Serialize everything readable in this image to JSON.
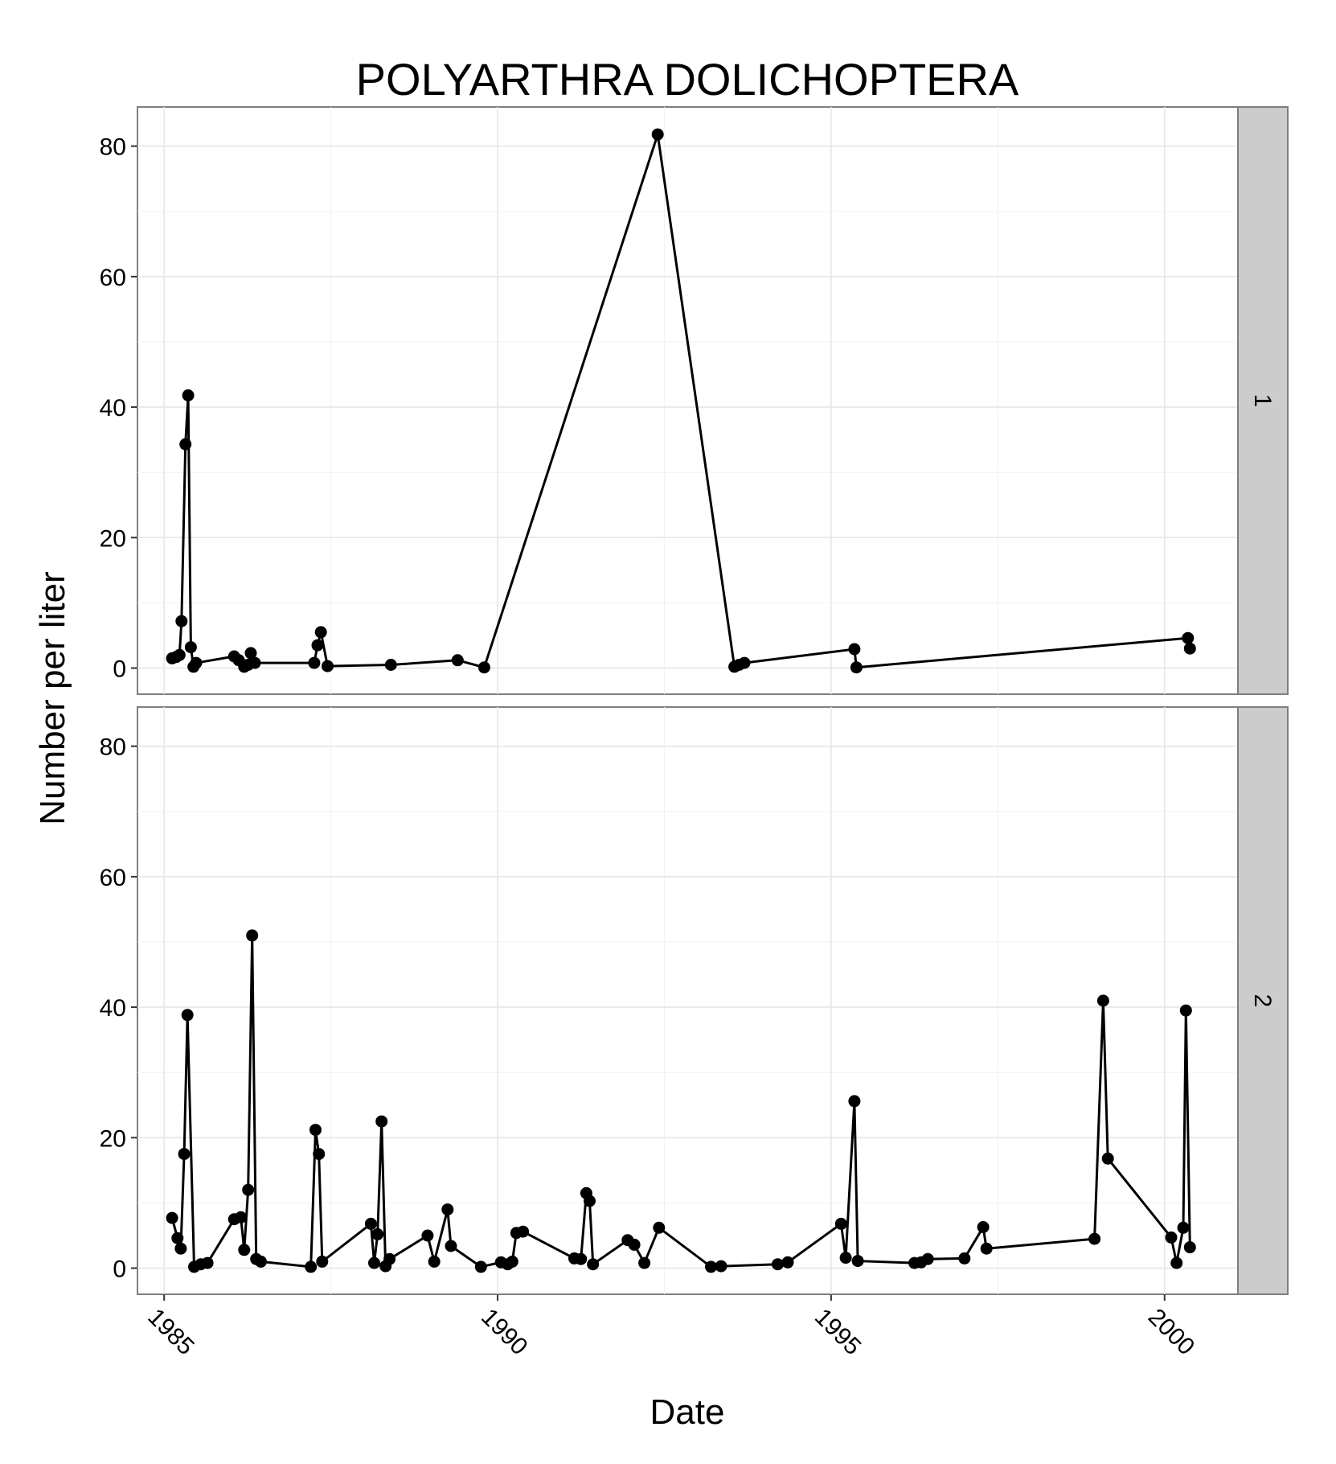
{
  "chart_data": {
    "type": "line",
    "title": "POLYARTHRA DOLICHOPTERA",
    "xlabel": "Date",
    "ylabel": "Number per liter",
    "xlim": [
      1984.6,
      2001.1
    ],
    "ylim": [
      -4,
      86
    ],
    "x_ticks": [
      1985,
      1990,
      1995,
      2000
    ],
    "x_tick_labels": [
      "1985",
      "1990",
      "1995",
      "2000"
    ],
    "y_ticks": [
      0,
      20,
      40,
      60,
      80
    ],
    "y_tick_labels": [
      "0",
      "20",
      "40",
      "60",
      "80"
    ],
    "grid": true,
    "facets": [
      {
        "label": "1",
        "points": [
          [
            1985.12,
            1.5
          ],
          [
            1985.18,
            1.7
          ],
          [
            1985.23,
            2.0
          ],
          [
            1985.26,
            7.2
          ],
          [
            1985.32,
            34.3
          ],
          [
            1985.36,
            41.8
          ],
          [
            1985.4,
            3.2
          ],
          [
            1985.44,
            0.2
          ],
          [
            1985.48,
            0.8
          ],
          [
            1986.05,
            1.8
          ],
          [
            1986.12,
            1.2
          ],
          [
            1986.2,
            0.2
          ],
          [
            1986.26,
            0.5
          ],
          [
            1986.3,
            2.3
          ],
          [
            1986.36,
            0.8
          ],
          [
            1987.25,
            0.8
          ],
          [
            1987.3,
            3.5
          ],
          [
            1987.35,
            5.5
          ],
          [
            1987.45,
            0.3
          ],
          [
            1988.4,
            0.5
          ],
          [
            1989.4,
            1.2
          ],
          [
            1989.8,
            0.1
          ],
          [
            1992.4,
            81.8
          ],
          [
            1993.55,
            0.2
          ],
          [
            1993.62,
            0.5
          ],
          [
            1993.7,
            0.8
          ],
          [
            1995.35,
            2.9
          ],
          [
            1995.38,
            0.1
          ],
          [
            2000.35,
            4.6
          ],
          [
            2000.38,
            3.0
          ]
        ]
      },
      {
        "label": "2",
        "points": [
          [
            1985.12,
            7.7
          ],
          [
            1985.2,
            4.6
          ],
          [
            1985.25,
            3.0
          ],
          [
            1985.3,
            17.5
          ],
          [
            1985.35,
            38.8
          ],
          [
            1985.45,
            0.2
          ],
          [
            1985.55,
            0.6
          ],
          [
            1985.65,
            0.8
          ],
          [
            1986.05,
            7.5
          ],
          [
            1986.15,
            7.8
          ],
          [
            1986.2,
            2.8
          ],
          [
            1986.26,
            12.0
          ],
          [
            1986.32,
            51.0
          ],
          [
            1986.38,
            1.4
          ],
          [
            1986.45,
            1.0
          ],
          [
            1987.2,
            0.2
          ],
          [
            1987.27,
            21.2
          ],
          [
            1987.32,
            17.5
          ],
          [
            1987.37,
            1.0
          ],
          [
            1988.1,
            6.8
          ],
          [
            1988.15,
            0.8
          ],
          [
            1988.2,
            5.2
          ],
          [
            1988.26,
            22.5
          ],
          [
            1988.32,
            0.3
          ],
          [
            1988.38,
            1.4
          ],
          [
            1988.95,
            5.0
          ],
          [
            1989.05,
            1.0
          ],
          [
            1989.25,
            9.0
          ],
          [
            1989.3,
            3.4
          ],
          [
            1989.75,
            0.2
          ],
          [
            1990.05,
            0.9
          ],
          [
            1990.15,
            0.6
          ],
          [
            1990.22,
            1.0
          ],
          [
            1990.28,
            5.4
          ],
          [
            1990.38,
            5.6
          ],
          [
            1991.15,
            1.5
          ],
          [
            1991.25,
            1.4
          ],
          [
            1991.33,
            11.5
          ],
          [
            1991.38,
            10.3
          ],
          [
            1991.43,
            0.6
          ],
          [
            1991.95,
            4.3
          ],
          [
            1992.05,
            3.6
          ],
          [
            1992.2,
            0.8
          ],
          [
            1992.42,
            6.2
          ],
          [
            1993.2,
            0.2
          ],
          [
            1993.35,
            0.3
          ],
          [
            1994.2,
            0.6
          ],
          [
            1994.35,
            0.9
          ],
          [
            1995.15,
            6.8
          ],
          [
            1995.22,
            1.6
          ],
          [
            1995.35,
            25.6
          ],
          [
            1995.4,
            1.1
          ],
          [
            1996.25,
            0.8
          ],
          [
            1996.35,
            0.9
          ],
          [
            1996.45,
            1.4
          ],
          [
            1997.0,
            1.5
          ],
          [
            1997.28,
            6.3
          ],
          [
            1997.33,
            3.0
          ],
          [
            1998.95,
            4.5
          ],
          [
            1999.08,
            41.0
          ],
          [
            1999.15,
            16.8
          ],
          [
            2000.1,
            4.7
          ],
          [
            2000.18,
            0.8
          ],
          [
            2000.28,
            6.2
          ],
          [
            2000.32,
            39.5
          ],
          [
            2000.38,
            3.2
          ]
        ]
      }
    ]
  }
}
